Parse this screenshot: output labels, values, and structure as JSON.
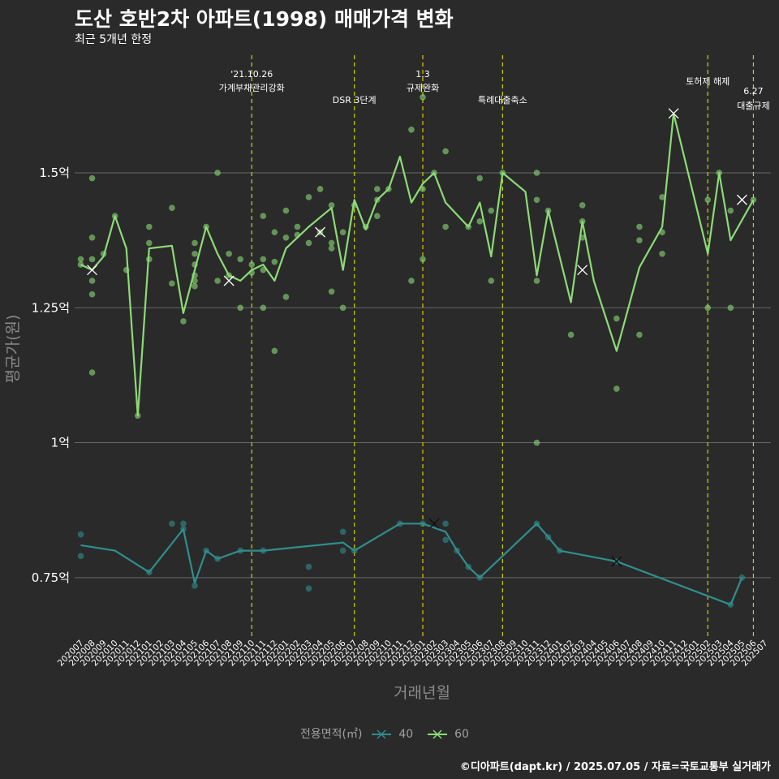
{
  "title": "도산 호반2차 아파트(1998) 매매가격 변화",
  "subtitle": "최근 5개년 한정",
  "caption": "©디아파트(dapt.kr) / 2025.07.05 / 자료=국토교통부 실거래가",
  "legend": {
    "title": "전용면적(㎡)",
    "items": [
      "40",
      "60"
    ]
  },
  "colors": {
    "background": "#2b2a2b",
    "grid": "#686868",
    "vline": "#c8d400",
    "s40": "#2f8f8c",
    "s60": "#8bdc75"
  },
  "chart_data": {
    "type": "line",
    "xlabel": "거래년월",
    "ylabel": "평균가(원)",
    "y_unit": "억원",
    "ylim": [
      0.64,
      1.73
    ],
    "yticks": [
      {
        "value": 0.75,
        "label": "0.75억"
      },
      {
        "value": 1.0,
        "label": "1억"
      },
      {
        "value": 1.25,
        "label": "1.25억"
      },
      {
        "value": 1.5,
        "label": "1.5억"
      }
    ],
    "x_categories": [
      "202007",
      "202008",
      "202009",
      "202010",
      "202011",
      "202012",
      "202101",
      "202102",
      "202103",
      "202104",
      "202105",
      "202106",
      "202107",
      "202108",
      "202109",
      "202110",
      "202111",
      "202112",
      "202201",
      "202202",
      "202203",
      "202204",
      "202205",
      "202206",
      "202207",
      "202208",
      "202209",
      "202210",
      "202211",
      "202212",
      "202301",
      "202302",
      "202303",
      "202304",
      "202305",
      "202306",
      "202307",
      "202308",
      "202309",
      "202310",
      "202311",
      "202312",
      "202401",
      "202402",
      "202403",
      "202404",
      "202405",
      "202406",
      "202407",
      "202408",
      "202409",
      "202410",
      "202411",
      "202412",
      "202501",
      "202502",
      "202503",
      "202504",
      "202505",
      "202506",
      "202507"
    ],
    "events": [
      {
        "x": "202110",
        "lines": [
          "'21.10.26",
          "가계부채관리강화"
        ],
        "level": 0
      },
      {
        "x": "202207",
        "lines": [
          "DSR 3단계"
        ],
        "level": 1
      },
      {
        "x": "202301",
        "lines": [
          "1.3",
          "규제완화"
        ],
        "level": 0
      },
      {
        "x": "202308",
        "lines": [
          "특례대출축소"
        ],
        "level": 1
      },
      {
        "x": "202502",
        "lines": [
          "토허제 해제"
        ],
        "level": 0.5
      },
      {
        "x": "202506",
        "lines": [
          "6.27",
          "대출규제"
        ],
        "level": 1.2
      }
    ],
    "series": [
      {
        "name": "40",
        "color": "#2f8f8c",
        "line": [
          {
            "x": "202007",
            "y": 0.81
          },
          {
            "x": "202010",
            "y": 0.8
          },
          {
            "x": "202101",
            "y": 0.76
          },
          {
            "x": "202104",
            "y": 0.84
          },
          {
            "x": "202105",
            "y": 0.74
          },
          {
            "x": "202106",
            "y": 0.8
          },
          {
            "x": "202107",
            "y": 0.785
          },
          {
            "x": "202109",
            "y": 0.8
          },
          {
            "x": "202111",
            "y": 0.8
          },
          {
            "x": "202206",
            "y": 0.815
          },
          {
            "x": "202207",
            "y": 0.8
          },
          {
            "x": "202211",
            "y": 0.85
          },
          {
            "x": "202301",
            "y": 0.85
          },
          {
            "x": "202303",
            "y": 0.835
          },
          {
            "x": "202304",
            "y": 0.8
          },
          {
            "x": "202305",
            "y": 0.77
          },
          {
            "x": "202306",
            "y": 0.75
          },
          {
            "x": "202311",
            "y": 0.85
          },
          {
            "x": "202312",
            "y": 0.825
          },
          {
            "x": "202401",
            "y": 0.8
          },
          {
            "x": "202406",
            "y": 0.78
          },
          {
            "x": "202504",
            "y": 0.7
          },
          {
            "x": "202505",
            "y": 0.75
          }
        ],
        "points": [
          {
            "x": "202007",
            "y": 0.83
          },
          {
            "x": "202007",
            "y": 0.79
          },
          {
            "x": "202101",
            "y": 0.76
          },
          {
            "x": "202103",
            "y": 0.85
          },
          {
            "x": "202104",
            "y": 0.85
          },
          {
            "x": "202104",
            "y": 0.84
          },
          {
            "x": "202105",
            "y": 0.735
          },
          {
            "x": "202106",
            "y": 0.8
          },
          {
            "x": "202107",
            "y": 0.785
          },
          {
            "x": "202109",
            "y": 0.8
          },
          {
            "x": "202111",
            "y": 0.8
          },
          {
            "x": "202203",
            "y": 0.77
          },
          {
            "x": "202203",
            "y": 0.73
          },
          {
            "x": "202206",
            "y": 0.835
          },
          {
            "x": "202206",
            "y": 0.8
          },
          {
            "x": "202207",
            "y": 0.8
          },
          {
            "x": "202211",
            "y": 0.85
          },
          {
            "x": "202301",
            "y": 0.85
          },
          {
            "x": "202303",
            "y": 0.85
          },
          {
            "x": "202303",
            "y": 0.82
          },
          {
            "x": "202304",
            "y": 0.8
          },
          {
            "x": "202305",
            "y": 0.77
          },
          {
            "x": "202306",
            "y": 0.75
          },
          {
            "x": "202311",
            "y": 0.85
          },
          {
            "x": "202312",
            "y": 0.825
          },
          {
            "x": "202401",
            "y": 0.8
          },
          {
            "x": "202406",
            "y": 0.78
          },
          {
            "x": "202504",
            "y": 0.7
          },
          {
            "x": "202505",
            "y": 0.75
          }
        ],
        "crosses": [
          {
            "x": "202302",
            "y": 0.85
          },
          {
            "x": "202406",
            "y": 0.78
          }
        ]
      },
      {
        "name": "60",
        "color": "#8bdc75",
        "line": [
          {
            "x": "202007",
            "y": 1.33
          },
          {
            "x": "202008",
            "y": 1.32
          },
          {
            "x": "202009",
            "y": 1.345
          },
          {
            "x": "202010",
            "y": 1.42
          },
          {
            "x": "202011",
            "y": 1.36
          },
          {
            "x": "202012",
            "y": 1.05
          },
          {
            "x": "202101",
            "y": 1.36
          },
          {
            "x": "202103",
            "y": 1.365
          },
          {
            "x": "202104",
            "y": 1.24
          },
          {
            "x": "202105",
            "y": 1.32
          },
          {
            "x": "202106",
            "y": 1.4
          },
          {
            "x": "202107",
            "y": 1.35
          },
          {
            "x": "202108",
            "y": 1.31
          },
          {
            "x": "202109",
            "y": 1.3
          },
          {
            "x": "202110",
            "y": 1.32
          },
          {
            "x": "202111",
            "y": 1.33
          },
          {
            "x": "202112",
            "y": 1.3
          },
          {
            "x": "202201",
            "y": 1.36
          },
          {
            "x": "202202",
            "y": 1.38
          },
          {
            "x": "202203",
            "y": 1.4
          },
          {
            "x": "202205",
            "y": 1.435
          },
          {
            "x": "202206",
            "y": 1.32
          },
          {
            "x": "202207",
            "y": 1.45
          },
          {
            "x": "202208",
            "y": 1.395
          },
          {
            "x": "202209",
            "y": 1.45
          },
          {
            "x": "202210",
            "y": 1.47
          },
          {
            "x": "202211",
            "y": 1.53
          },
          {
            "x": "202212",
            "y": 1.445
          },
          {
            "x": "202301",
            "y": 1.48
          },
          {
            "x": "202302",
            "y": 1.5
          },
          {
            "x": "202303",
            "y": 1.445
          },
          {
            "x": "202305",
            "y": 1.4
          },
          {
            "x": "202306",
            "y": 1.445
          },
          {
            "x": "202307",
            "y": 1.345
          },
          {
            "x": "202308",
            "y": 1.5
          },
          {
            "x": "202310",
            "y": 1.465
          },
          {
            "x": "202311",
            "y": 1.31
          },
          {
            "x": "202312",
            "y": 1.43
          },
          {
            "x": "202402",
            "y": 1.26
          },
          {
            "x": "202403",
            "y": 1.41
          },
          {
            "x": "202404",
            "y": 1.3
          },
          {
            "x": "202406",
            "y": 1.17
          },
          {
            "x": "202408",
            "y": 1.325
          },
          {
            "x": "202410",
            "y": 1.4
          },
          {
            "x": "202411",
            "y": 1.61
          },
          {
            "x": "202502",
            "y": 1.35
          },
          {
            "x": "202503",
            "y": 1.5
          },
          {
            "x": "202504",
            "y": 1.375
          },
          {
            "x": "202506",
            "y": 1.45
          }
        ],
        "points": [
          {
            "x": "202007",
            "y": 1.34
          },
          {
            "x": "202007",
            "y": 1.33
          },
          {
            "x": "202008",
            "y": 1.49
          },
          {
            "x": "202008",
            "y": 1.38
          },
          {
            "x": "202008",
            "y": 1.34
          },
          {
            "x": "202008",
            "y": 1.3
          },
          {
            "x": "202008",
            "y": 1.275
          },
          {
            "x": "202008",
            "y": 1.13
          },
          {
            "x": "202009",
            "y": 1.35
          },
          {
            "x": "202010",
            "y": 1.42
          },
          {
            "x": "202011",
            "y": 1.32
          },
          {
            "x": "202012",
            "y": 1.05
          },
          {
            "x": "202101",
            "y": 1.4
          },
          {
            "x": "202101",
            "y": 1.37
          },
          {
            "x": "202101",
            "y": 1.34
          },
          {
            "x": "202103",
            "y": 1.435
          },
          {
            "x": "202103",
            "y": 1.295
          },
          {
            "x": "202104",
            "y": 1.225
          },
          {
            "x": "202105",
            "y": 1.37
          },
          {
            "x": "202105",
            "y": 1.35
          },
          {
            "x": "202105",
            "y": 1.33
          },
          {
            "x": "202105",
            "y": 1.31
          },
          {
            "x": "202105",
            "y": 1.3
          },
          {
            "x": "202105",
            "y": 1.29
          },
          {
            "x": "202106",
            "y": 1.4
          },
          {
            "x": "202107",
            "y": 1.5
          },
          {
            "x": "202107",
            "y": 1.3
          },
          {
            "x": "202108",
            "y": 1.35
          },
          {
            "x": "202108",
            "y": 1.31
          },
          {
            "x": "202109",
            "y": 1.34
          },
          {
            "x": "202109",
            "y": 1.25
          },
          {
            "x": "202110",
            "y": 1.33
          },
          {
            "x": "202110",
            "y": 1.315
          },
          {
            "x": "202111",
            "y": 1.42
          },
          {
            "x": "202111",
            "y": 1.34
          },
          {
            "x": "202111",
            "y": 1.32
          },
          {
            "x": "202111",
            "y": 1.25
          },
          {
            "x": "202112",
            "y": 1.39
          },
          {
            "x": "202112",
            "y": 1.335
          },
          {
            "x": "202112",
            "y": 1.17
          },
          {
            "x": "202201",
            "y": 1.43
          },
          {
            "x": "202201",
            "y": 1.38
          },
          {
            "x": "202201",
            "y": 1.27
          },
          {
            "x": "202202",
            "y": 1.4
          },
          {
            "x": "202202",
            "y": 1.385
          },
          {
            "x": "202203",
            "y": 1.455
          },
          {
            "x": "202203",
            "y": 1.37
          },
          {
            "x": "202204",
            "y": 1.47
          },
          {
            "x": "202204",
            "y": 1.39
          },
          {
            "x": "202205",
            "y": 1.44
          },
          {
            "x": "202205",
            "y": 1.37
          },
          {
            "x": "202205",
            "y": 1.36
          },
          {
            "x": "202205",
            "y": 1.28
          },
          {
            "x": "202206",
            "y": 1.39
          },
          {
            "x": "202206",
            "y": 1.25
          },
          {
            "x": "202207",
            "y": 1.44
          },
          {
            "x": "202208",
            "y": 1.4
          },
          {
            "x": "202209",
            "y": 1.47
          },
          {
            "x": "202209",
            "y": 1.45
          },
          {
            "x": "202209",
            "y": 1.42
          },
          {
            "x": "202210",
            "y": 1.47
          },
          {
            "x": "202212",
            "y": 1.58
          },
          {
            "x": "202212",
            "y": 1.3
          },
          {
            "x": "202301",
            "y": 1.64
          },
          {
            "x": "202301",
            "y": 1.47
          },
          {
            "x": "202301",
            "y": 1.34
          },
          {
            "x": "202302",
            "y": 1.5
          },
          {
            "x": "202303",
            "y": 1.54
          },
          {
            "x": "202303",
            "y": 1.4
          },
          {
            "x": "202305",
            "y": 1.4
          },
          {
            "x": "202306",
            "y": 1.49
          },
          {
            "x": "202306",
            "y": 1.41
          },
          {
            "x": "202307",
            "y": 1.43
          },
          {
            "x": "202307",
            "y": 1.3
          },
          {
            "x": "202308",
            "y": 1.5
          },
          {
            "x": "202311",
            "y": 1.5
          },
          {
            "x": "202311",
            "y": 1.45
          },
          {
            "x": "202311",
            "y": 1.3
          },
          {
            "x": "202311",
            "y": 1.0
          },
          {
            "x": "202312",
            "y": 1.43
          },
          {
            "x": "202402",
            "y": 1.2
          },
          {
            "x": "202403",
            "y": 1.44
          },
          {
            "x": "202403",
            "y": 1.41
          },
          {
            "x": "202403",
            "y": 1.38
          },
          {
            "x": "202406",
            "y": 1.23
          },
          {
            "x": "202406",
            "y": 1.1
          },
          {
            "x": "202408",
            "y": 1.4
          },
          {
            "x": "202408",
            "y": 1.375
          },
          {
            "x": "202408",
            "y": 1.2
          },
          {
            "x": "202410",
            "y": 1.455
          },
          {
            "x": "202410",
            "y": 1.39
          },
          {
            "x": "202410",
            "y": 1.35
          },
          {
            "x": "202502",
            "y": 1.45
          },
          {
            "x": "202502",
            "y": 1.25
          },
          {
            "x": "202503",
            "y": 1.5
          },
          {
            "x": "202504",
            "y": 1.43
          },
          {
            "x": "202504",
            "y": 1.25
          },
          {
            "x": "202506",
            "y": 1.45
          }
        ],
        "crosses": [
          {
            "x": "202008",
            "y": 1.32
          },
          {
            "x": "202108",
            "y": 1.3
          },
          {
            "x": "202204",
            "y": 1.39
          },
          {
            "x": "202403",
            "y": 1.32
          },
          {
            "x": "202411",
            "y": 1.61
          },
          {
            "x": "202505",
            "y": 1.45
          }
        ]
      }
    ]
  }
}
